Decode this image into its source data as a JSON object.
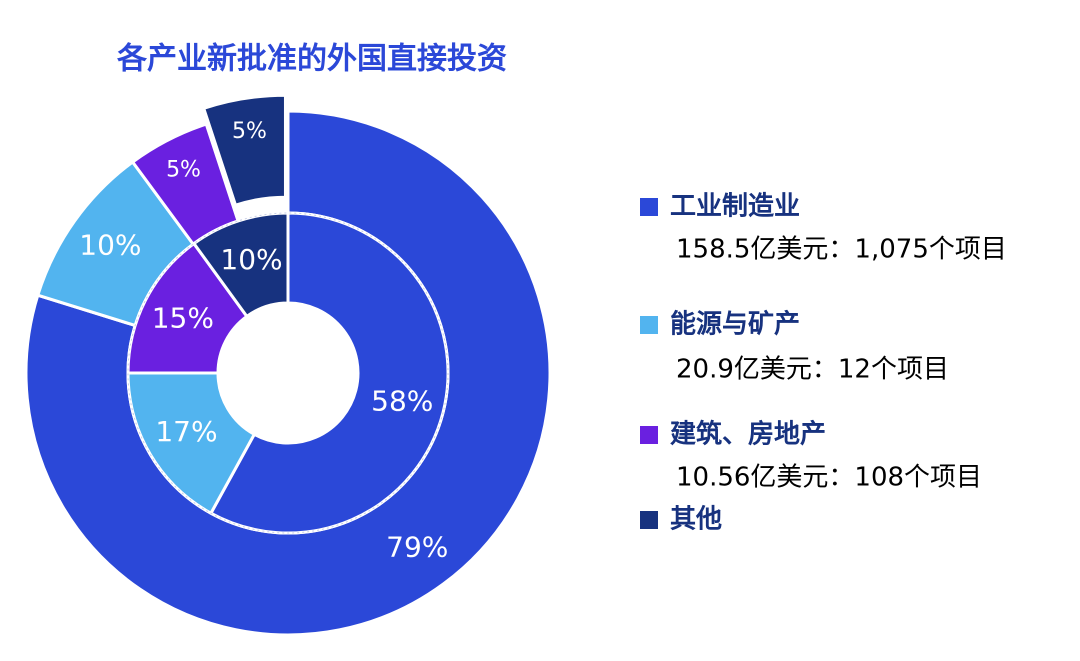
{
  "chart_data": {
    "type": "donut",
    "title": "各产业新批准的外国直接投资",
    "categories": [
      "工业制造业",
      "能源与矿产",
      "建筑、房地产",
      "其他"
    ],
    "category_notes": [
      "158.5亿美元：1,075个项目",
      "20.9亿美元：12个项目",
      "10.56亿美元：108个项目",
      null
    ],
    "colors": [
      "#2b48d8",
      "#52b4ef",
      "#6a20e0",
      "#17327f"
    ],
    "series": [
      {
        "values": [
          79,
          10,
          5,
          5
        ],
        "value_labels": [
          "79%",
          "10%",
          "5%",
          "5%"
        ]
      },
      {
        "values": [
          58,
          17,
          15,
          10
        ],
        "value_labels": [
          "58%",
          "17%",
          "15%",
          "10%"
        ]
      }
    ]
  }
}
